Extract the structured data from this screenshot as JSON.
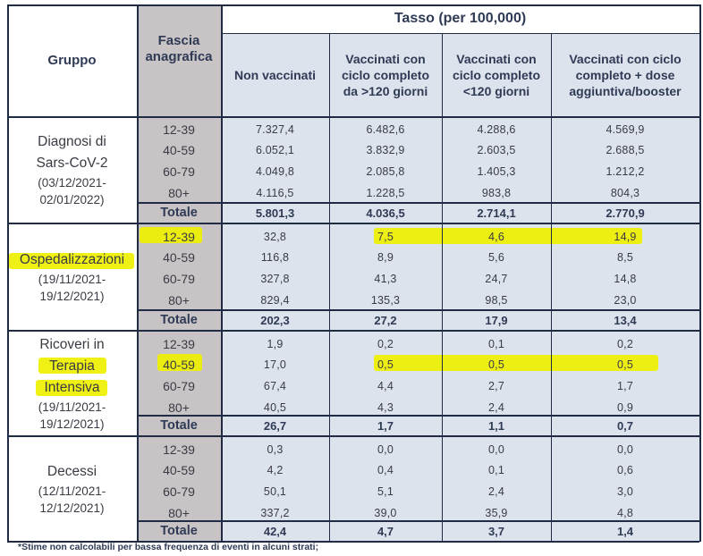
{
  "header": {
    "gruppo": "Gruppo",
    "fascia": [
      "Fascia",
      "anagrafica"
    ],
    "tasso": "Tasso (per 100,000)",
    "cols": [
      [
        "Non vaccinati"
      ],
      [
        "Vaccinati con",
        "ciclo completo",
        "da >120 giorni"
      ],
      [
        "Vaccinati con",
        "ciclo completo",
        "<120 giorni"
      ],
      [
        "Vaccinati con ciclo",
        "completo + dose",
        "aggiuntiva/booster"
      ]
    ]
  },
  "groups": [
    {
      "label": [
        "Diagnosi di",
        "Sars-CoV-2",
        "(03/12/2021-",
        "02/01/2022)"
      ],
      "rows": [
        {
          "age": "12-39",
          "values": [
            "7.327,4",
            "6.482,6",
            "4.288,6",
            "4.569,9"
          ]
        },
        {
          "age": "40-59",
          "values": [
            "6.052,1",
            "3.832,9",
            "2.603,5",
            "2.688,5"
          ]
        },
        {
          "age": "60-79",
          "values": [
            "4.049,8",
            "2.085,8",
            "1.405,3",
            "1.212,2"
          ]
        },
        {
          "age": "80+",
          "values": [
            "4.116,5",
            "1.228,5",
            "983,8",
            "804,3"
          ]
        }
      ],
      "total": {
        "label": "Totale",
        "values": [
          "5.801,3",
          "4.036,5",
          "2.714,1",
          "2.770,9"
        ]
      }
    },
    {
      "label": [
        "Ospedalizzazioni",
        "(19/11/2021-",
        "19/12/2021)"
      ],
      "rows": [
        {
          "age": "12-39",
          "values": [
            "32,8",
            "7,5",
            "4,6",
            "14,9"
          ]
        },
        {
          "age": "40-59",
          "values": [
            "116,8",
            "8,9",
            "5,6",
            "8,5"
          ]
        },
        {
          "age": "60-79",
          "values": [
            "327,8",
            "41,3",
            "24,7",
            "14,8"
          ]
        },
        {
          "age": "80+",
          "values": [
            "829,4",
            "135,3",
            "98,5",
            "23,0"
          ]
        }
      ],
      "total": {
        "label": "Totale",
        "values": [
          "202,3",
          "27,2",
          "17,9",
          "13,4"
        ]
      }
    },
    {
      "label": [
        "Ricoveri in",
        "Terapia",
        "Intensiva",
        "(19/11/2021-",
        "19/12/2021)"
      ],
      "rows": [
        {
          "age": "12-39",
          "values": [
            "1,9",
            "0,2",
            "0,1",
            "0,2"
          ]
        },
        {
          "age": "40-59",
          "values": [
            "17,0",
            "0,5",
            "0,5",
            "0,5"
          ]
        },
        {
          "age": "60-79",
          "values": [
            "67,4",
            "4,4",
            "2,7",
            "1,7"
          ]
        },
        {
          "age": "80+",
          "values": [
            "40,5",
            "4,3",
            "2,4",
            "0,9"
          ]
        }
      ],
      "total": {
        "label": "Totale",
        "values": [
          "26,7",
          "1,7",
          "1,1",
          "0,7"
        ]
      }
    },
    {
      "label": [
        "Decessi",
        "(12/11/2021-",
        "12/12/2021)"
      ],
      "rows": [
        {
          "age": "12-39",
          "values": [
            "0,3",
            "0,0",
            "0,0",
            "0,0"
          ]
        },
        {
          "age": "40-59",
          "values": [
            "4,2",
            "0,4",
            "0,1",
            "0,6"
          ]
        },
        {
          "age": "60-79",
          "values": [
            "50,1",
            "5,1",
            "2,4",
            "3,0"
          ]
        },
        {
          "age": "80+",
          "values": [
            "337,2",
            "39,0",
            "35,9",
            "4,8"
          ]
        }
      ],
      "total": {
        "label": "Totale",
        "values": [
          "42,4",
          "4,7",
          "3,7",
          "1,4"
        ]
      }
    }
  ],
  "footnote": "*Stime non calcolabili per bassa frequenza di eventi in alcuni strati;",
  "colors": {
    "grid": "#1f2c44",
    "fascia_bg": "#c8c4c6",
    "data_bg": "#dde3ed",
    "header_bg": "#ffffff",
    "highlight": "#eef000",
    "text": "#3a3a44"
  }
}
